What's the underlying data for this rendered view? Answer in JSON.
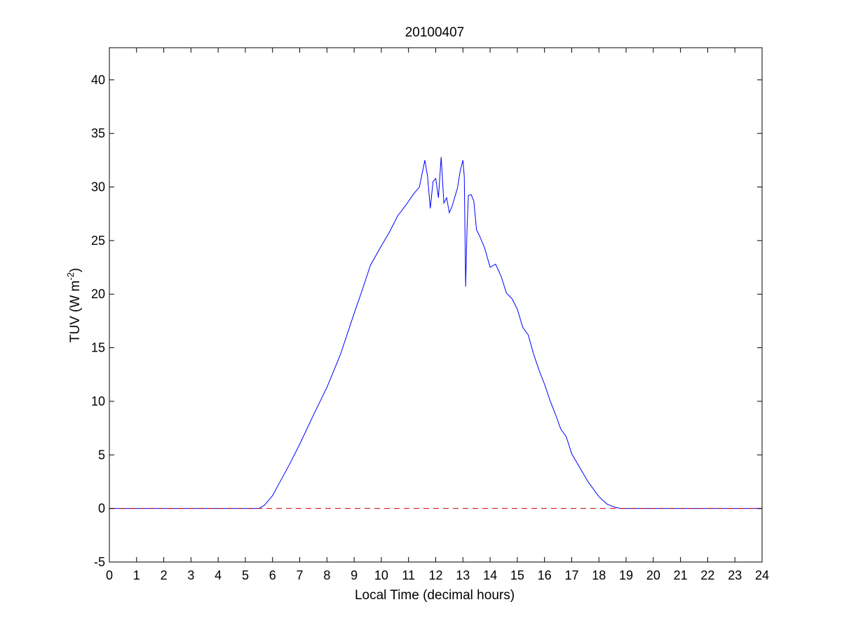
{
  "chart_data": {
    "type": "line",
    "title": "20100407",
    "xlabel": "Local Time (decimal hours)",
    "ylabel": {
      "prefix": "TUV (W m",
      "superscript": "-2",
      "suffix": ")"
    },
    "xlim": [
      0,
      24
    ],
    "ylim": [
      -5,
      43
    ],
    "xticks": [
      "0",
      "1",
      "2",
      "3",
      "4",
      "5",
      "6",
      "7",
      "8",
      "9",
      "10",
      "11",
      "12",
      "13",
      "14",
      "15",
      "16",
      "17",
      "18",
      "19",
      "20",
      "21",
      "22",
      "23",
      "24"
    ],
    "yticks": [
      "-5",
      "0",
      "5",
      "10",
      "15",
      "20",
      "25",
      "30",
      "35",
      "40"
    ],
    "grid": false,
    "legend": "none",
    "series": [
      {
        "color": "#0000ff",
        "style": "solid",
        "x": [
          0,
          5.5,
          5.7,
          6.0,
          6.3,
          6.6,
          7.0,
          7.5,
          8.0,
          8.5,
          9.0,
          9.3,
          9.6,
          10.0,
          10.3,
          10.6,
          10.9,
          11.2,
          11.4,
          11.6,
          11.7,
          11.8,
          11.9,
          12.0,
          12.1,
          12.2,
          12.3,
          12.4,
          12.5,
          12.6,
          12.8,
          12.9,
          13.0,
          13.05,
          13.1,
          13.15,
          13.2,
          13.3,
          13.4,
          13.5,
          13.6,
          13.8,
          14.0,
          14.2,
          14.4,
          14.6,
          14.8,
          15.0,
          15.2,
          15.4,
          15.6,
          15.8,
          16.0,
          16.2,
          16.4,
          16.6,
          16.8,
          17.0,
          17.3,
          17.6,
          18.0,
          18.3,
          18.6,
          18.8,
          19.0,
          24
        ],
        "y": [
          0,
          0,
          0.3,
          1.2,
          2.6,
          4.0,
          6.0,
          8.7,
          11.3,
          14.4,
          18.2,
          20.4,
          22.7,
          24.5,
          25.8,
          27.3,
          28.3,
          29.4,
          30.0,
          32.5,
          31.0,
          28.0,
          30.5,
          30.8,
          29.0,
          32.8,
          28.5,
          29.0,
          27.6,
          28.2,
          29.9,
          31.5,
          32.5,
          31.0,
          20.7,
          26.0,
          29.2,
          29.3,
          28.7,
          26.0,
          25.5,
          24.3,
          22.5,
          22.8,
          21.7,
          20.1,
          19.6,
          18.6,
          16.9,
          16.2,
          14.4,
          12.9,
          11.6,
          10.1,
          8.8,
          7.4,
          6.7,
          5.1,
          3.8,
          2.5,
          1.1,
          0.4,
          0.1,
          0,
          0,
          0
        ]
      },
      {
        "color": "#cc0000",
        "style": "dashed",
        "x": [
          0,
          24
        ],
        "y": [
          0,
          0
        ]
      }
    ]
  }
}
